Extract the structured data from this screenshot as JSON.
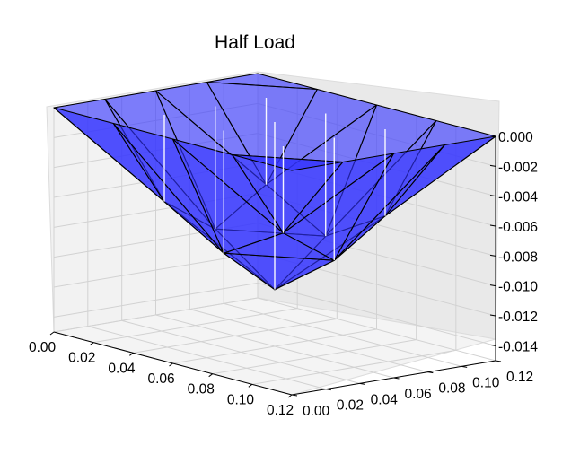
{
  "chart_data": {
    "type": "surface",
    "title": "Half Load",
    "xlabel": "",
    "ylabel": "",
    "zlabel": "",
    "x_ticks": [
      "0.00",
      "0.02",
      "0.04",
      "0.06",
      "0.08",
      "0.10",
      "0.12"
    ],
    "y_ticks": [
      "0.00",
      "0.02",
      "0.04",
      "0.06",
      "0.08",
      "0.10",
      "0.12"
    ],
    "z_ticks": [
      "0.000",
      "-0.002",
      "-0.004",
      "-0.006",
      "-0.008",
      "-0.010",
      "-0.012",
      "-0.014"
    ],
    "xlim": [
      0,
      0.12
    ],
    "ylim": [
      0,
      0.12
    ],
    "zlim": [
      -0.015,
      0.0
    ],
    "grid": true,
    "surface_color": "#3333ff",
    "edge_color": "#000000",
    "pane_color": "#f2f2f2",
    "x_grid": [
      0.0,
      0.03,
      0.06,
      0.09,
      0.12
    ],
    "y_grid": [
      0.0,
      0.03,
      0.06,
      0.09,
      0.12
    ],
    "z_values": [
      [
        0.0,
        0.0,
        0.0,
        0.0,
        0.0
      ],
      [
        0.0,
        -0.0058,
        -0.0082,
        -0.0058,
        0.0
      ],
      [
        0.0,
        -0.0082,
        -0.0112,
        -0.0082,
        0.0
      ],
      [
        0.0,
        -0.0058,
        -0.0082,
        -0.0058,
        0.0
      ],
      [
        0.0,
        0.0,
        0.0,
        0.0,
        0.0
      ]
    ]
  }
}
